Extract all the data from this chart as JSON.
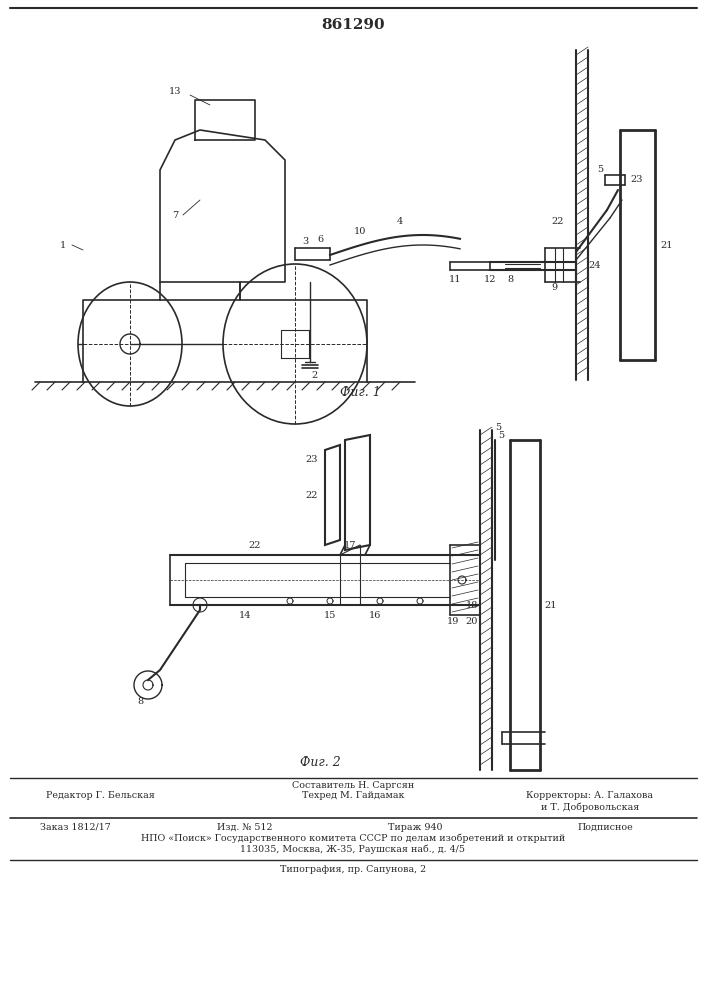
{
  "patent_number": "861290",
  "fig1_label": "Фиг. 1",
  "fig2_label": "Фиг. 2",
  "bg_color": "#ffffff",
  "line_color": "#2a2a2a",
  "footer_col1_line1": "Редактор Г. Бельская",
  "footer_col2_line1": "Составитель Н. Саргсян",
  "footer_col2_line2": "Техред М. Гайдамак",
  "footer_col3_line1": "Корректоры: А. Галахова",
  "footer_col3_line2": "и Т. Добровольская",
  "footer_row2_1": "Заказ 1812/17",
  "footer_row2_2": "Изд. № 512",
  "footer_row2_3": "Тираж 940",
  "footer_row2_4": "Подписное",
  "footer_row3": "НПО «Поиск» Государственного комитета СССР по делам изобретений и открытий",
  "footer_row4": "113035, Москва, Ж-35, Раушская наб., д. 4/5",
  "footer_row5": "Типография, пр. Сапунова, 2"
}
